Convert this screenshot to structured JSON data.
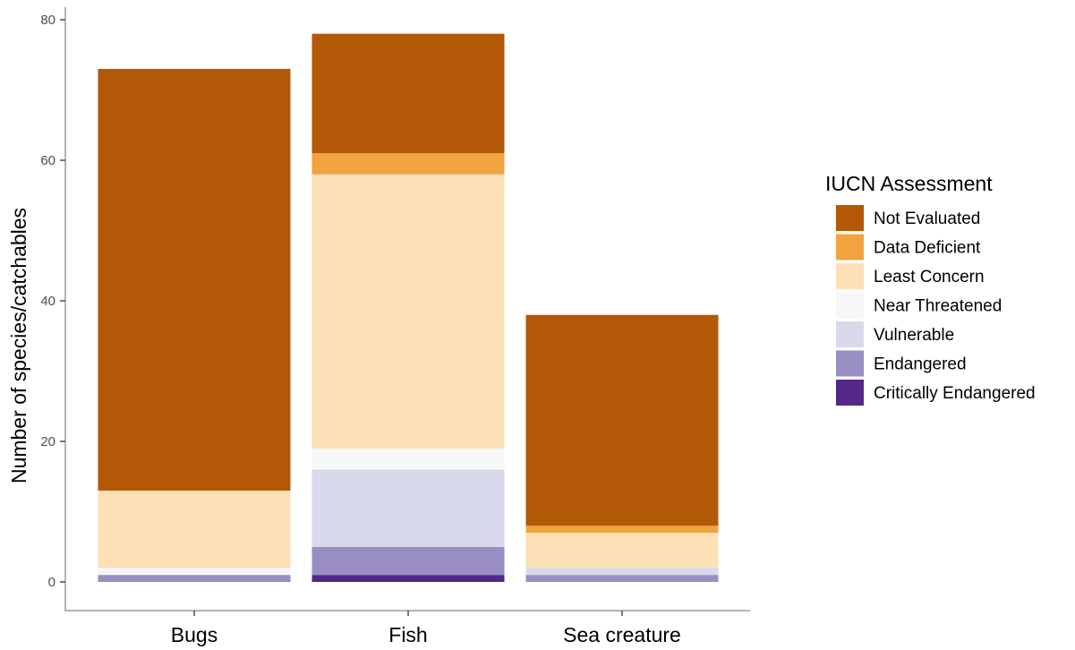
{
  "chart_data": {
    "type": "bar",
    "stacked": true,
    "categories": [
      "Bugs",
      "Fish",
      "Sea creature"
    ],
    "ylabel": "Number of species/catchables",
    "xlabel": "",
    "ylim": [
      0,
      80
    ],
    "yticks": [
      "0",
      "20",
      "40",
      "60",
      "80"
    ],
    "grid": false,
    "legend": {
      "title": "IUCN Assessment",
      "position": "right"
    },
    "series": [
      {
        "name": "Critically Endangered",
        "color": "#542788",
        "values": [
          0,
          1,
          0
        ]
      },
      {
        "name": "Endangered",
        "color": "#998ec3",
        "values": [
          1,
          4,
          1
        ]
      },
      {
        "name": "Vulnerable",
        "color": "#d8daeb",
        "values": [
          0,
          11,
          1
        ]
      },
      {
        "name": "Near Threatened",
        "color": "#f7f7f7",
        "values": [
          1,
          3,
          0
        ]
      },
      {
        "name": "Least Concern",
        "color": "#fee0b6",
        "values": [
          11,
          39,
          5
        ]
      },
      {
        "name": "Data Deficient",
        "color": "#f1a340",
        "values": [
          0,
          3,
          1
        ]
      },
      {
        "name": "Not Evaluated",
        "color": "#b35806",
        "values": [
          60,
          17,
          30
        ]
      }
    ]
  }
}
